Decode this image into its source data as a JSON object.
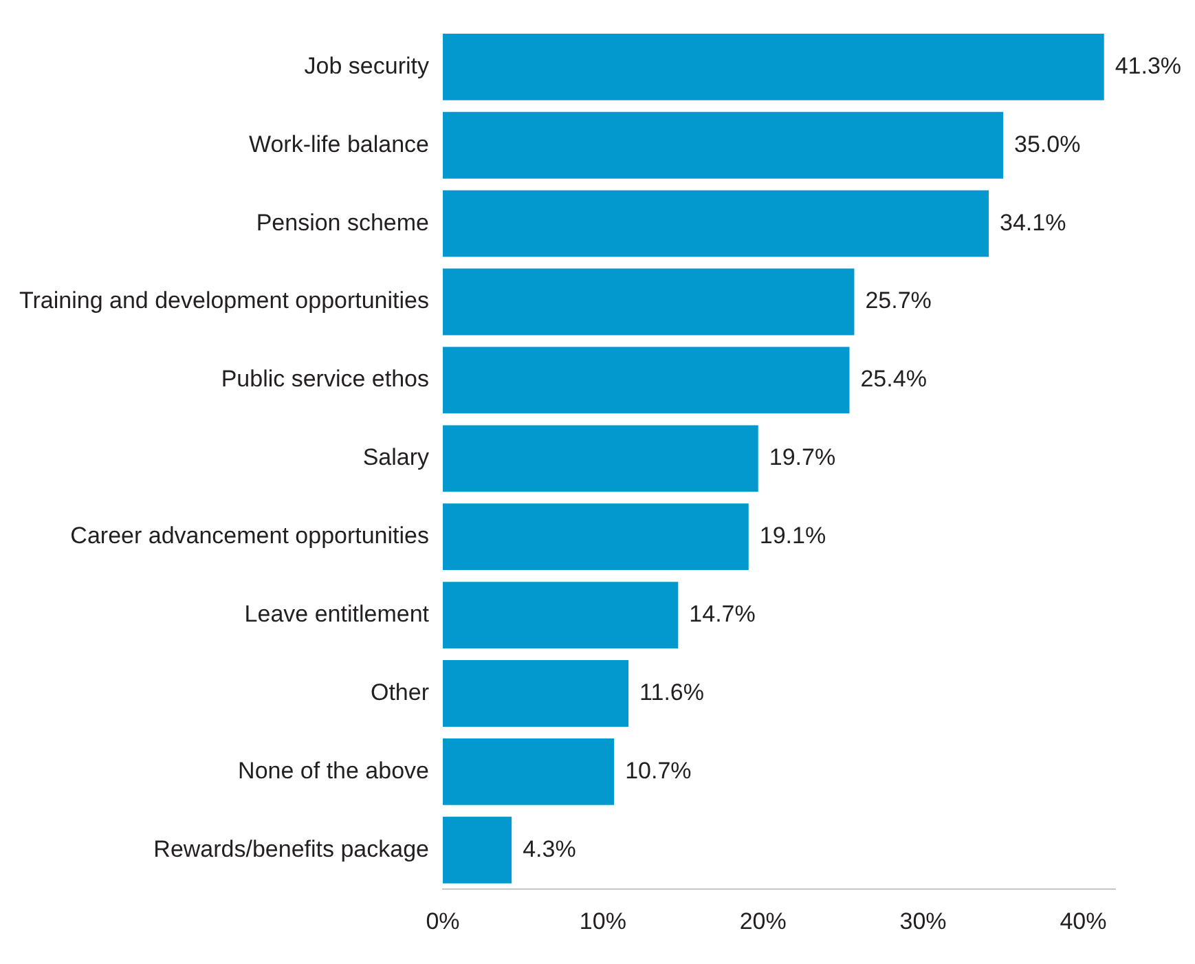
{
  "chart_data": {
    "type": "bar",
    "orientation": "horizontal",
    "categories": [
      "Job security",
      "Work-life balance",
      "Pension scheme",
      "Training and development opportunities",
      "Public service ethos",
      "Salary",
      "Career advancement opportunities",
      "Leave entitlement",
      "Other",
      "None of the above",
      "Rewards/benefits package"
    ],
    "values": [
      41.3,
      35.0,
      34.1,
      25.7,
      25.4,
      19.7,
      19.1,
      14.7,
      11.6,
      10.7,
      4.3
    ],
    "value_labels": [
      "41.3%",
      "35.0%",
      "34.1%",
      "25.7%",
      "25.4%",
      "19.7%",
      "19.1%",
      "14.7%",
      "11.6%",
      "10.7%",
      "4.3%"
    ],
    "color": "#0399cf",
    "xlim": [
      0,
      42
    ],
    "xticks": [
      {
        "value": 0,
        "label": "0%"
      },
      {
        "value": 10,
        "label": "10%"
      },
      {
        "value": 20,
        "label": "20%"
      },
      {
        "value": 30,
        "label": "30%"
      },
      {
        "value": 40,
        "label": "40%"
      }
    ],
    "grid": false,
    "legend": false
  }
}
